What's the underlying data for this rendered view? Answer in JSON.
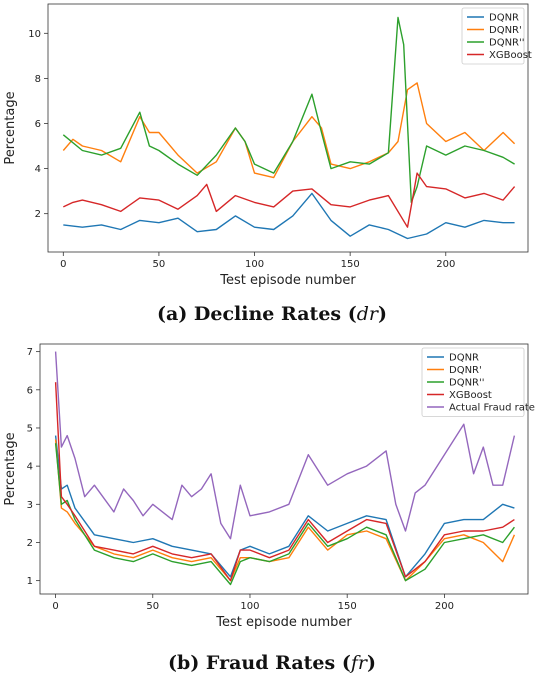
{
  "captions": [
    {
      "prefix": "(a) Decline Rates (",
      "symbol": "dr",
      "suffix": ")"
    },
    {
      "prefix": "(b) Fraud Rates (",
      "symbol": "fr",
      "suffix": ")"
    }
  ],
  "chart_data": [
    {
      "type": "line",
      "title": "",
      "xlabel": "Test episode number",
      "ylabel": "Percentage",
      "xlim": [
        -8,
        243
      ],
      "ylim": [
        0.3,
        11.3
      ],
      "xticks": [
        0,
        50,
        100,
        150,
        200
      ],
      "yticks": [
        2,
        4,
        6,
        8,
        10
      ],
      "legend": "top-right",
      "grid": false,
      "series": [
        {
          "name": "DQNR",
          "color": "#1f77b4",
          "x": [
            0,
            10,
            20,
            30,
            40,
            50,
            60,
            70,
            80,
            90,
            100,
            110,
            120,
            130,
            140,
            150,
            160,
            170,
            180,
            190,
            200,
            210,
            220,
            230,
            236
          ],
          "y": [
            1.5,
            1.4,
            1.5,
            1.3,
            1.7,
            1.6,
            1.8,
            1.2,
            1.3,
            1.9,
            1.4,
            1.3,
            1.9,
            2.9,
            1.7,
            1.0,
            1.5,
            1.3,
            0.9,
            1.1,
            1.6,
            1.4,
            1.7,
            1.6,
            1.6
          ]
        },
        {
          "name": "DQNR'",
          "color": "#ff7f0e",
          "x": [
            0,
            5,
            10,
            20,
            30,
            40,
            45,
            50,
            60,
            70,
            80,
            90,
            95,
            100,
            110,
            120,
            130,
            135,
            140,
            150,
            160,
            170,
            175,
            180,
            185,
            190,
            200,
            210,
            220,
            230,
            236
          ],
          "y": [
            4.8,
            5.3,
            5.0,
            4.8,
            4.3,
            6.3,
            5.6,
            5.6,
            4.6,
            3.8,
            4.3,
            5.8,
            5.2,
            3.8,
            3.6,
            5.2,
            6.3,
            5.8,
            4.2,
            4.0,
            4.3,
            4.7,
            5.2,
            7.5,
            7.8,
            6.0,
            5.2,
            5.6,
            4.8,
            5.6,
            5.1
          ]
        },
        {
          "name": "DQNR''",
          "color": "#2ca02c",
          "x": [
            0,
            10,
            20,
            30,
            40,
            45,
            50,
            60,
            70,
            80,
            90,
            95,
            100,
            110,
            120,
            130,
            135,
            140,
            150,
            160,
            170,
            175,
            178,
            182,
            185,
            190,
            200,
            210,
            220,
            230,
            236
          ],
          "y": [
            5.5,
            4.8,
            4.6,
            4.9,
            6.5,
            5.0,
            4.8,
            4.2,
            3.7,
            4.6,
            5.8,
            5.2,
            4.2,
            3.8,
            5.2,
            7.3,
            5.6,
            4.0,
            4.3,
            4.2,
            4.7,
            10.7,
            9.5,
            2.5,
            3.2,
            5.0,
            4.6,
            5.0,
            4.8,
            4.5,
            4.2
          ]
        },
        {
          "name": "XGBoost",
          "color": "#d62728",
          "x": [
            0,
            5,
            10,
            20,
            30,
            40,
            50,
            60,
            70,
            75,
            80,
            90,
            100,
            110,
            120,
            130,
            140,
            150,
            160,
            170,
            180,
            185,
            190,
            200,
            210,
            220,
            230,
            236
          ],
          "y": [
            2.3,
            2.5,
            2.6,
            2.4,
            2.1,
            2.7,
            2.6,
            2.2,
            2.8,
            3.3,
            2.1,
            2.8,
            2.5,
            2.3,
            3.0,
            3.1,
            2.4,
            2.3,
            2.6,
            2.8,
            1.4,
            3.8,
            3.2,
            3.1,
            2.7,
            2.9,
            2.6,
            3.2
          ]
        }
      ]
    },
    {
      "type": "line",
      "title": "",
      "xlabel": "Test episode number",
      "ylabel": "Percentage",
      "xlim": [
        -8,
        243
      ],
      "ylim": [
        0.65,
        7.2
      ],
      "xticks": [
        0,
        50,
        100,
        150,
        200
      ],
      "yticks": [
        1,
        2,
        3,
        4,
        5,
        6,
        7
      ],
      "legend": "top-right",
      "grid": false,
      "series": [
        {
          "name": "DQNR",
          "color": "#1f77b4",
          "x": [
            0,
            3,
            6,
            10,
            20,
            30,
            40,
            50,
            60,
            70,
            80,
            90,
            95,
            100,
            110,
            120,
            130,
            140,
            150,
            160,
            170,
            180,
            190,
            200,
            210,
            220,
            230,
            236
          ],
          "y": [
            4.8,
            3.4,
            3.5,
            2.9,
            2.2,
            2.1,
            2.0,
            2.1,
            1.9,
            1.8,
            1.7,
            1.1,
            1.8,
            1.9,
            1.7,
            1.9,
            2.7,
            2.3,
            2.5,
            2.7,
            2.6,
            1.1,
            1.7,
            2.5,
            2.6,
            2.6,
            3.0,
            2.9
          ]
        },
        {
          "name": "DQNR'",
          "color": "#ff7f0e",
          "x": [
            0,
            3,
            6,
            10,
            20,
            30,
            40,
            50,
            60,
            70,
            80,
            90,
            95,
            100,
            110,
            120,
            130,
            140,
            150,
            160,
            170,
            180,
            190,
            200,
            210,
            220,
            230,
            236
          ],
          "y": [
            4.7,
            2.9,
            2.8,
            2.5,
            1.9,
            1.7,
            1.6,
            1.8,
            1.6,
            1.5,
            1.6,
            1.0,
            1.6,
            1.6,
            1.5,
            1.6,
            2.4,
            1.8,
            2.2,
            2.3,
            2.1,
            1.0,
            1.5,
            2.1,
            2.2,
            2.0,
            1.5,
            2.2
          ]
        },
        {
          "name": "DQNR''",
          "color": "#2ca02c",
          "x": [
            0,
            3,
            6,
            10,
            20,
            30,
            40,
            50,
            60,
            70,
            80,
            90,
            95,
            100,
            110,
            120,
            130,
            140,
            150,
            160,
            170,
            180,
            190,
            200,
            210,
            220,
            230,
            236
          ],
          "y": [
            4.6,
            3.0,
            3.1,
            2.6,
            1.8,
            1.6,
            1.5,
            1.7,
            1.5,
            1.4,
            1.5,
            0.9,
            1.5,
            1.6,
            1.5,
            1.7,
            2.5,
            1.9,
            2.1,
            2.4,
            2.2,
            1.0,
            1.3,
            2.0,
            2.1,
            2.2,
            2.0,
            2.4
          ]
        },
        {
          "name": "XGBoost",
          "color": "#d62728",
          "x": [
            0,
            3,
            6,
            10,
            20,
            30,
            40,
            50,
            60,
            70,
            80,
            90,
            95,
            100,
            110,
            120,
            130,
            140,
            150,
            160,
            170,
            180,
            190,
            200,
            210,
            220,
            230,
            236
          ],
          "y": [
            6.2,
            3.2,
            3.0,
            2.7,
            1.9,
            1.8,
            1.7,
            1.9,
            1.7,
            1.6,
            1.7,
            1.0,
            1.8,
            1.8,
            1.6,
            1.8,
            2.6,
            2.0,
            2.3,
            2.6,
            2.5,
            1.1,
            1.5,
            2.2,
            2.3,
            2.3,
            2.4,
            2.6
          ]
        },
        {
          "name": "Actual Fraud rate",
          "color": "#9467bd",
          "x": [
            0,
            3,
            6,
            10,
            15,
            20,
            30,
            35,
            40,
            45,
            50,
            60,
            65,
            70,
            75,
            80,
            85,
            90,
            95,
            100,
            110,
            120,
            130,
            140,
            150,
            160,
            170,
            175,
            180,
            185,
            190,
            200,
            210,
            215,
            220,
            225,
            230,
            236
          ],
          "y": [
            7.0,
            4.5,
            4.8,
            4.2,
            3.2,
            3.5,
            2.8,
            3.4,
            3.1,
            2.7,
            3.0,
            2.6,
            3.5,
            3.2,
            3.4,
            3.8,
            2.5,
            2.1,
            3.5,
            2.7,
            2.8,
            3.0,
            4.3,
            3.5,
            3.8,
            4.0,
            4.4,
            3.0,
            2.3,
            3.3,
            3.5,
            4.3,
            5.1,
            3.8,
            4.5,
            3.5,
            3.5,
            4.8
          ]
        }
      ]
    }
  ]
}
